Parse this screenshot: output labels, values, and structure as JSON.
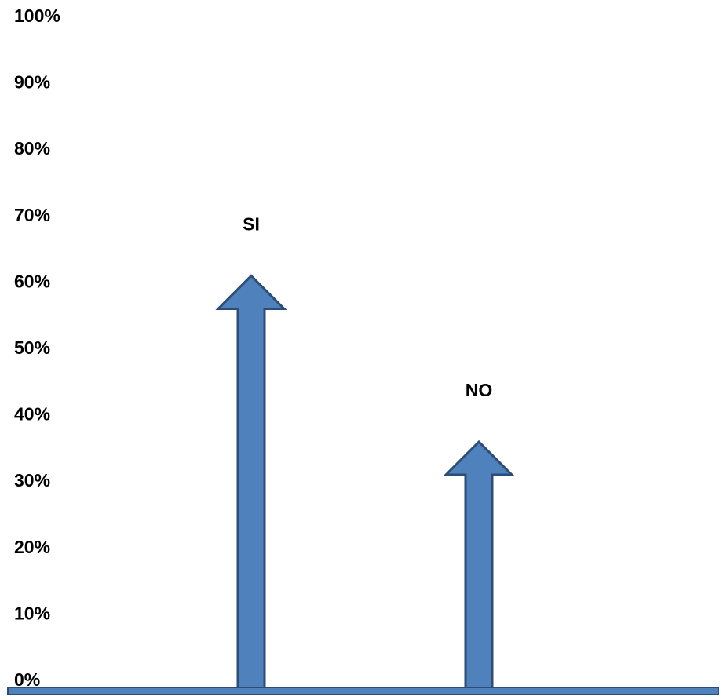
{
  "chart_data": {
    "type": "bar",
    "style": "arrows",
    "categories": [
      "SI",
      "NO"
    ],
    "values": [
      62,
      37
    ],
    "y_ticks": [
      "0%",
      "10%",
      "20%",
      "30%",
      "40%",
      "50%",
      "60%",
      "70%",
      "80%",
      "90%",
      "100%"
    ],
    "ylim": [
      0,
      100
    ],
    "grid": false,
    "legend": false,
    "colors": {
      "fill": "#4F81BD",
      "stroke": "#2C4D75",
      "text": "#000000"
    }
  }
}
